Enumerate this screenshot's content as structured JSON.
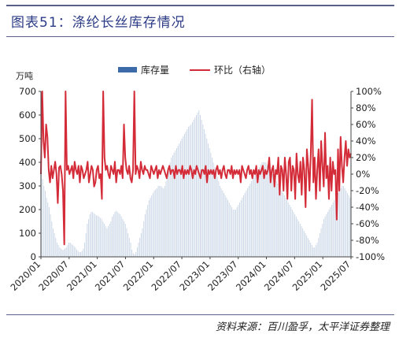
{
  "header": {
    "title": "图表51：涤纶长丝库存情况"
  },
  "footer": {
    "source": "资料来源：百川盈孚，太平洋证券整理"
  },
  "chart_data": {
    "type": "bar+line",
    "unit_left": "万吨",
    "legend": {
      "placement": "top-center",
      "items": [
        "库存量",
        "环比（右轴）"
      ]
    },
    "y_left": {
      "min": 0,
      "max": 700,
      "ticks": [
        "0",
        "100",
        "200",
        "300",
        "400",
        "500",
        "600",
        "700"
      ]
    },
    "y_right": {
      "min": -100,
      "max": 100,
      "ticks": [
        "-100%",
        "-80%",
        "-60%",
        "-40%",
        "-20%",
        "0%",
        "20%",
        "40%",
        "60%",
        "80%",
        "100%"
      ]
    },
    "x_ticks": [
      "2020/01",
      "2020/07",
      "2021/01",
      "2021/07",
      "2022/01",
      "2022/07",
      "2023/01",
      "2023/07",
      "2024/01",
      "2024/07",
      "2025/01",
      "2025/07"
    ],
    "grid": false,
    "series": [
      {
        "name": "库存量",
        "type": "bar",
        "axis": "left",
        "color": "#c9d6e6",
        "values": [
          360,
          330,
          300,
          280,
          250,
          230,
          210,
          180,
          150,
          120,
          100,
          80,
          60,
          50,
          40,
          35,
          30,
          30,
          35,
          40,
          50,
          60,
          60,
          55,
          50,
          45,
          40,
          30,
          25,
          20,
          20,
          25,
          35,
          60,
          100,
          140,
          160,
          180,
          190,
          190,
          185,
          180,
          175,
          175,
          170,
          165,
          160,
          150,
          140,
          130,
          120,
          130,
          140,
          150,
          170,
          180,
          190,
          195,
          190,
          185,
          180,
          170,
          160,
          150,
          140,
          120,
          100,
          80,
          60,
          30,
          15,
          10,
          20,
          40,
          60,
          80,
          100,
          120,
          150,
          180,
          200,
          220,
          240,
          250,
          260,
          270,
          280,
          285,
          290,
          300,
          300,
          300,
          295,
          290,
          300,
          320,
          350,
          380,
          400,
          420,
          430,
          440,
          450,
          460,
          470,
          480,
          490,
          500,
          510,
          520,
          530,
          540,
          550,
          555,
          560,
          570,
          580,
          590,
          600,
          610,
          620,
          600,
          580,
          560,
          540,
          520,
          500,
          480,
          460,
          440,
          420,
          400,
          380,
          360,
          340,
          320,
          300,
          290,
          280,
          270,
          260,
          250,
          240,
          230,
          220,
          210,
          200,
          200,
          200,
          210,
          220,
          230,
          240,
          250,
          260,
          270,
          280,
          290,
          300,
          310,
          320,
          330,
          340,
          350,
          360,
          370,
          380,
          390,
          400,
          400,
          400,
          400,
          390,
          380,
          370,
          360,
          350,
          340,
          330,
          320,
          310,
          300,
          290,
          280,
          270,
          260,
          250,
          240,
          230,
          220,
          210,
          200,
          190,
          180,
          170,
          160,
          150,
          140,
          130,
          120,
          110,
          100,
          90,
          80,
          70,
          60,
          50,
          40,
          40,
          50,
          60,
          80,
          100,
          120,
          140,
          160,
          170,
          180,
          190,
          200,
          210,
          220,
          230,
          240,
          250,
          260,
          270,
          280,
          290,
          300,
          300,
          290,
          280,
          270,
          260,
          250
        ]
      },
      {
        "name": "环比（右轴）",
        "type": "line",
        "axis": "right",
        "color": "#d42b38",
        "values": [
          0,
          100,
          40,
          20,
          60,
          45,
          5,
          -10,
          10,
          -5,
          5,
          15,
          0,
          -35,
          8,
          10,
          0,
          -20,
          -85,
          100,
          5,
          10,
          0,
          5,
          10,
          -5,
          15,
          5,
          0,
          10,
          -10,
          10,
          5,
          -5,
          0,
          5,
          15,
          -10,
          0,
          10,
          5,
          -15,
          -10,
          5,
          10,
          -5,
          0,
          -30,
          100,
          20,
          5,
          10,
          0,
          -5,
          10,
          5,
          0,
          15,
          -10,
          5,
          5,
          0,
          10,
          -5,
          60,
          20,
          5,
          0,
          10,
          -5,
          -10,
          5,
          100,
          0,
          10,
          5,
          -5,
          15,
          5,
          0,
          10,
          5,
          5,
          0,
          -5,
          10,
          5,
          0,
          5,
          10,
          -5,
          5,
          0,
          5,
          10,
          5,
          0,
          -5,
          5,
          10,
          0,
          5,
          5,
          -5,
          10,
          0,
          5,
          5,
          0,
          10,
          -5,
          5,
          0,
          5,
          0,
          10,
          5,
          -5,
          5,
          0,
          10,
          5,
          0,
          -5,
          5,
          5,
          0,
          10,
          -10,
          5,
          0,
          5,
          0,
          5,
          -5,
          5,
          10,
          0,
          5,
          -5,
          5,
          10,
          0,
          -5,
          5,
          5,
          0,
          10,
          -5,
          5,
          0,
          5,
          0,
          5,
          -10,
          10,
          5,
          0,
          -5,
          5,
          10,
          0,
          5,
          -5,
          5,
          0,
          10,
          -10,
          5,
          0,
          5,
          10,
          -5,
          5,
          0,
          5,
          20,
          -10,
          5,
          10,
          -15,
          5,
          0,
          20,
          -25,
          10,
          5,
          -20,
          20,
          0,
          -30,
          15,
          20,
          -20,
          10,
          5,
          -30,
          25,
          0,
          -10,
          15,
          -25,
          20,
          5,
          -40,
          30,
          10,
          -20,
          25,
          90,
          -10,
          20,
          -30,
          5,
          30,
          -20,
          40,
          10,
          -15,
          50,
          -5,
          10,
          -30,
          20,
          -20,
          15,
          0,
          5,
          -55,
          30,
          -20,
          45,
          10,
          -10,
          20,
          40,
          10,
          30,
          20,
          25
        ]
      }
    ]
  }
}
